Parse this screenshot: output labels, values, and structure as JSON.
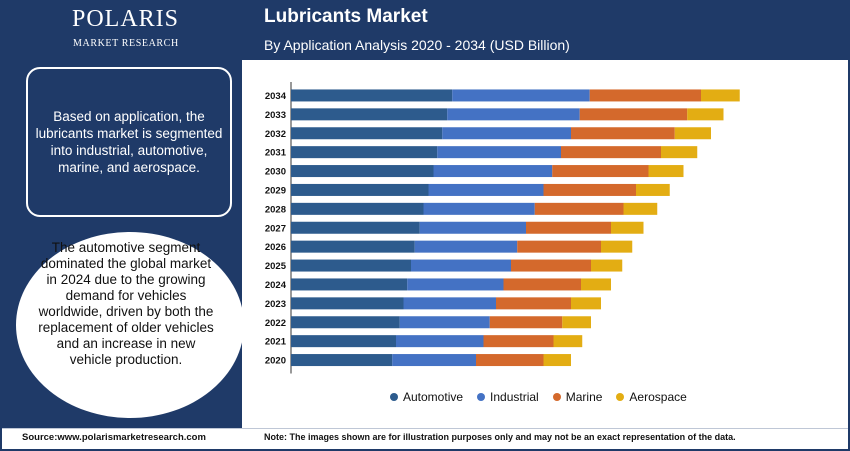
{
  "brand": {
    "name": "POLARIS",
    "tagline": "MARKET RESEARCH"
  },
  "header": {
    "title": "Lubricants Market",
    "subtitle": "By Application Analysis 2020 - 2034 (USD Billion)"
  },
  "left_panel": {
    "box_text": "Based on application, the lubricants market is segmented into industrial, automotive, marine, and aerospace.",
    "circle_text": "The automotive segment dominated the global market in 2024 due to the growing demand for vehicles worldwide, driven by both the replacement of older vehicles and an increase in new vehicle production."
  },
  "footer": {
    "source": "Source:www.polarismarketresearch.com",
    "note": "Note: The images shown are for illustration purposes only and may not be an exact representation of the data."
  },
  "colors": {
    "Automotive": "#2d5b8d",
    "Industrial": "#4472c4",
    "Marine": "#d4692c",
    "Aerospace": "#e3ad13",
    "navy": "#1f3a68"
  },
  "chart_data": {
    "type": "bar",
    "orientation": "horizontal",
    "stacked": true,
    "categories": [
      "2034",
      "2033",
      "2032",
      "2031",
      "2030",
      "2029",
      "2028",
      "2027",
      "2026",
      "2025",
      "2024",
      "2023",
      "2022",
      "2021",
      "2020"
    ],
    "series": [
      {
        "name": "Automotive",
        "values": [
          64.5,
          62.5,
          60.5,
          58.5,
          57.0,
          55.0,
          53.0,
          51.5,
          49.5,
          48.0,
          46.5,
          45.0,
          43.5,
          42.0,
          40.5
        ]
      },
      {
        "name": "Industrial",
        "values": [
          55.0,
          53.0,
          51.5,
          49.5,
          47.5,
          46.0,
          44.5,
          42.5,
          41.0,
          40.0,
          38.5,
          37.0,
          36.0,
          35.0,
          33.5
        ]
      },
      {
        "name": "Marine",
        "values": [
          44.5,
          43.0,
          41.5,
          40.0,
          38.5,
          37.0,
          35.5,
          34.0,
          33.5,
          32.0,
          31.0,
          30.0,
          29.0,
          28.0,
          27.0
        ]
      },
      {
        "name": "Aerospace",
        "values": [
          15.5,
          14.5,
          14.5,
          14.5,
          14.0,
          13.5,
          13.5,
          13.0,
          12.5,
          12.5,
          12.0,
          12.0,
          11.5,
          11.5,
          11.0
        ]
      }
    ],
    "legend_position": "bottom",
    "grid": false
  }
}
